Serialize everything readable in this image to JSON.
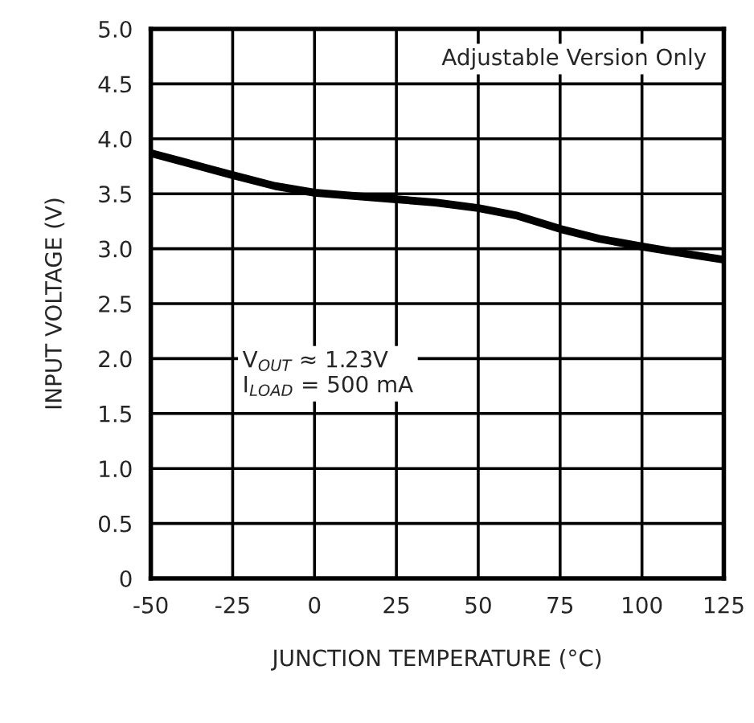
{
  "chart_data": {
    "type": "line",
    "xlabel": "JUNCTION TEMPERATURE (°C)",
    "ylabel": "INPUT VOLTAGE (V)",
    "x": [
      -50,
      -40,
      -25,
      -12,
      0,
      12,
      25,
      37,
      50,
      62,
      75,
      87,
      100,
      112,
      125
    ],
    "series": [
      {
        "color": "#000000",
        "values": [
          3.87,
          3.79,
          3.67,
          3.57,
          3.51,
          3.48,
          3.45,
          3.42,
          3.37,
          3.3,
          3.18,
          3.09,
          3.02,
          2.96,
          2.9
        ]
      }
    ],
    "xlim": [
      -50,
      125
    ],
    "ylim": [
      0,
      5
    ],
    "xticks": [
      -50,
      -25,
      0,
      25,
      50,
      75,
      100,
      125
    ],
    "yticks": [
      0,
      {
        "value": 0.5,
        "label": "0.5"
      },
      {
        "value": 1,
        "label": "1.0"
      },
      {
        "value": 1.5,
        "label": "1.5"
      },
      {
        "value": 2,
        "label": "2.0"
      },
      {
        "value": 2.5,
        "label": "2.5"
      },
      {
        "value": 3,
        "label": "3.0"
      },
      {
        "value": 3.5,
        "label": "3.5"
      },
      {
        "value": 4,
        "label": "4.0"
      },
      {
        "value": 4.5,
        "label": "4.5"
      },
      {
        "value": 5,
        "label": "5.0"
      }
    ],
    "grid": true,
    "line_style": "solid",
    "marker": "none",
    "annotations": [
      "Adjustable Version Only",
      "V$_{OUT}$ ≈ 1.23V\nI$_{LOAD}$ = 500 mA"
    ]
  }
}
